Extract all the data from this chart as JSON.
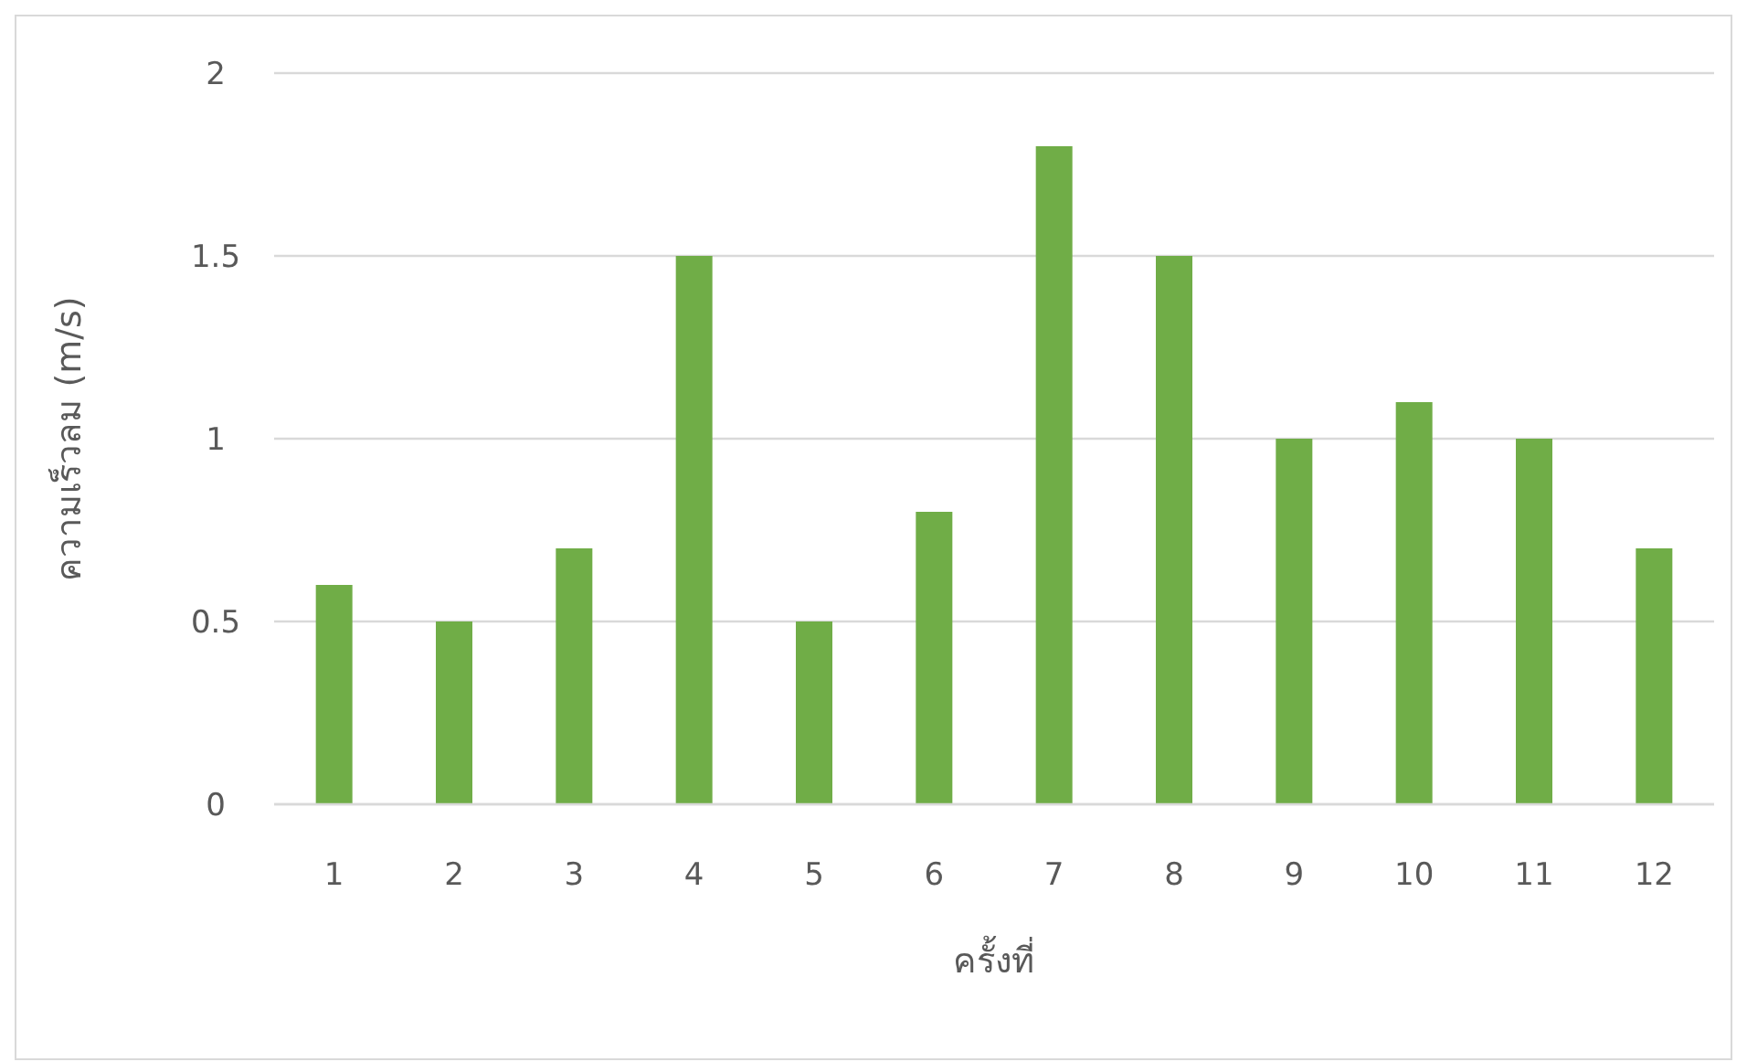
{
  "chart_data": {
    "type": "bar",
    "xlabel": "ครั้งที่",
    "ylabel": "ความเร็วลม (m/s)",
    "categories": [
      "1",
      "2",
      "3",
      "4",
      "5",
      "6",
      "7",
      "8",
      "9",
      "10",
      "11",
      "12"
    ],
    "values": [
      0.6,
      0.5,
      0.7,
      1.5,
      0.5,
      0.8,
      1.8,
      1.5,
      1.0,
      1.1,
      1.0,
      0.7
    ],
    "color": "#70ad47",
    "ylim": [
      0,
      2
    ],
    "yticks": [
      0,
      0.5,
      1,
      1.5,
      2
    ],
    "grid": "y"
  }
}
